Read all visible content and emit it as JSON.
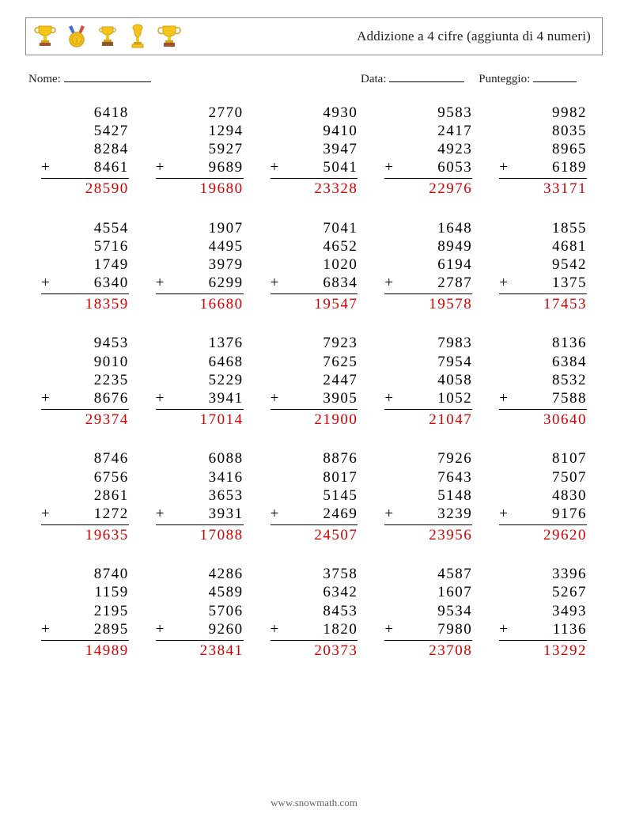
{
  "header": {
    "title": "Addizione a 4 cifre (aggiunta di 4 numeri)",
    "trophy_colors": {
      "gold": "#f5c518",
      "gold_dark": "#d4a017",
      "silver": "#b8b8b8",
      "ribbon_blue": "#3a6fd8",
      "ribbon_red": "#d84a3a",
      "wood": "#a0522d"
    }
  },
  "meta": {
    "name_label": "Nome:",
    "date_label": "Data:",
    "score_label": "Punteggio:"
  },
  "style": {
    "answer_color": "#d40000",
    "number_color": "#000000",
    "operator": "+"
  },
  "problems": [
    [
      {
        "addends": [
          6418,
          5427,
          8284,
          8461
        ],
        "answer": 28590
      },
      {
        "addends": [
          2770,
          1294,
          5927,
          9689
        ],
        "answer": 19680
      },
      {
        "addends": [
          4930,
          9410,
          3947,
          5041
        ],
        "answer": 23328
      },
      {
        "addends": [
          9583,
          2417,
          4923,
          6053
        ],
        "answer": 22976
      },
      {
        "addends": [
          9982,
          8035,
          8965,
          6189
        ],
        "answer": 33171
      }
    ],
    [
      {
        "addends": [
          4554,
          5716,
          1749,
          6340
        ],
        "answer": 18359
      },
      {
        "addends": [
          1907,
          4495,
          3979,
          6299
        ],
        "answer": 16680
      },
      {
        "addends": [
          7041,
          4652,
          1020,
          6834
        ],
        "answer": 19547
      },
      {
        "addends": [
          1648,
          8949,
          6194,
          2787
        ],
        "answer": 19578
      },
      {
        "addends": [
          1855,
          4681,
          9542,
          1375
        ],
        "answer": 17453
      }
    ],
    [
      {
        "addends": [
          9453,
          9010,
          2235,
          8676
        ],
        "answer": 29374
      },
      {
        "addends": [
          1376,
          6468,
          5229,
          3941
        ],
        "answer": 17014
      },
      {
        "addends": [
          7923,
          7625,
          2447,
          3905
        ],
        "answer": 21900
      },
      {
        "addends": [
          7983,
          7954,
          4058,
          1052
        ],
        "answer": 21047
      },
      {
        "addends": [
          8136,
          6384,
          8532,
          7588
        ],
        "answer": 30640
      }
    ],
    [
      {
        "addends": [
          8746,
          6756,
          2861,
          1272
        ],
        "answer": 19635
      },
      {
        "addends": [
          6088,
          3416,
          3653,
          3931
        ],
        "answer": 17088
      },
      {
        "addends": [
          8876,
          8017,
          5145,
          2469
        ],
        "answer": 24507
      },
      {
        "addends": [
          7926,
          7643,
          5148,
          3239
        ],
        "answer": 23956
      },
      {
        "addends": [
          8107,
          7507,
          4830,
          9176
        ],
        "answer": 29620
      }
    ],
    [
      {
        "addends": [
          8740,
          1159,
          2195,
          2895
        ],
        "answer": 14989
      },
      {
        "addends": [
          4286,
          4589,
          5706,
          9260
        ],
        "answer": 23841
      },
      {
        "addends": [
          3758,
          6342,
          8453,
          1820
        ],
        "answer": 20373
      },
      {
        "addends": [
          4587,
          1607,
          9534,
          7980
        ],
        "answer": 23708
      },
      {
        "addends": [
          3396,
          5267,
          3493,
          1136
        ],
        "answer": 13292
      }
    ]
  ],
  "footer": {
    "text": "www.snowmath.com"
  }
}
